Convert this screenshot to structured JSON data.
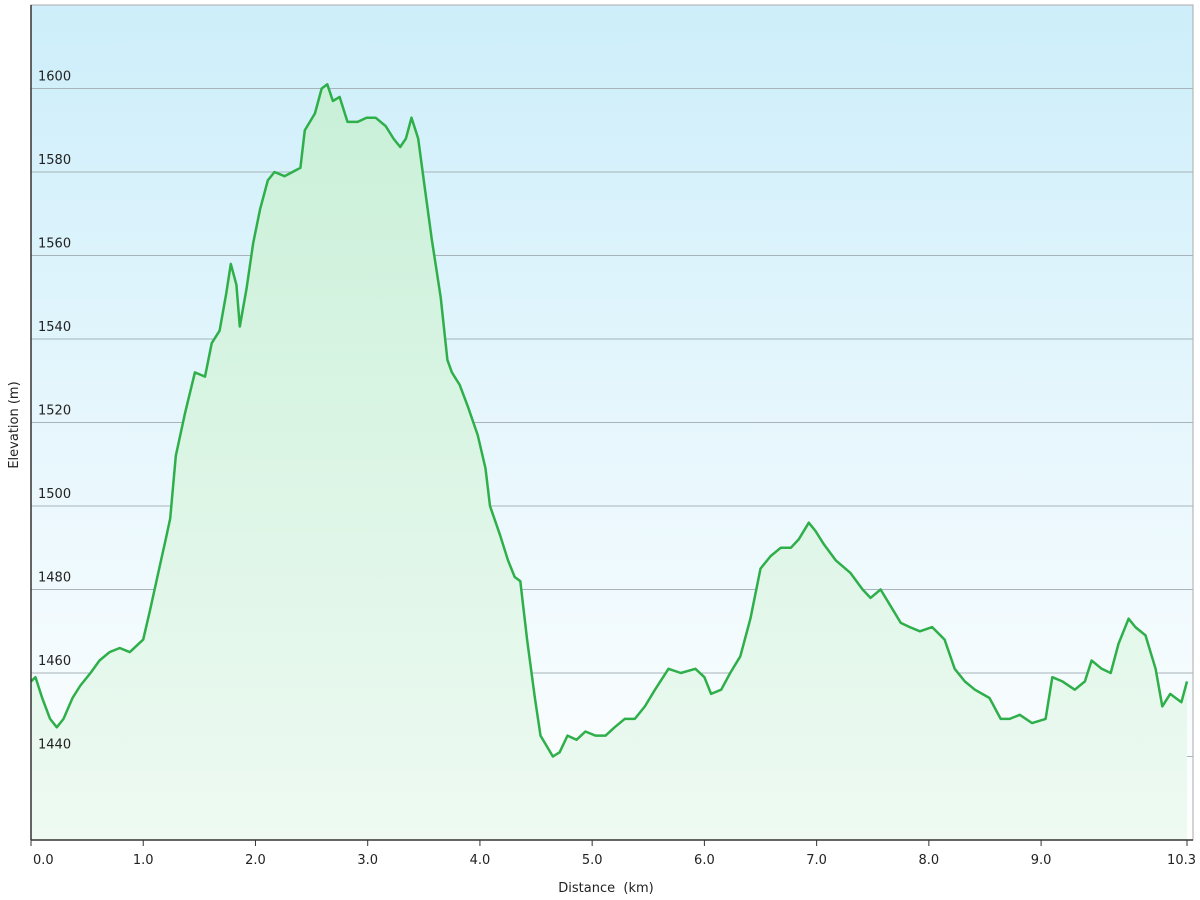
{
  "chart_data": {
    "type": "area",
    "xlabel": "Distance  (km)",
    "ylabel": "Elevation (m)",
    "color": "#2eaf4a",
    "fill_top": "#c9f0d8",
    "fill_bottom": "#eefaf2",
    "x": [
      0,
      0.04,
      0.1,
      0.17,
      0.23,
      0.29,
      0.37,
      0.44,
      0.53,
      0.61,
      0.7,
      0.79,
      0.88,
      1.0,
      1.06,
      1.15,
      1.2,
      1.24,
      1.29,
      1.37,
      1.46,
      1.55,
      1.61,
      1.68,
      1.74,
      1.78,
      1.83,
      1.86,
      1.92,
      1.98,
      2.04,
      2.11,
      2.17,
      2.26,
      2.33,
      2.4,
      2.44,
      2.53,
      2.59,
      2.64,
      2.69,
      2.75,
      2.82,
      2.91,
      2.99,
      3.07,
      3.16,
      3.23,
      3.29,
      3.34,
      3.39,
      3.45,
      3.51,
      3.57,
      3.65,
      3.71,
      3.75,
      3.82,
      3.89,
      3.98,
      4.05,
      4.09,
      4.18,
      4.25,
      4.31,
      4.36,
      4.42,
      4.49,
      4.54,
      4.65,
      4.71,
      4.78,
      4.86,
      4.94,
      5.03,
      5.12,
      5.2,
      5.29,
      5.38,
      5.47,
      5.56,
      5.68,
      5.79,
      5.92,
      6.0,
      6.06,
      6.15,
      6.23,
      6.32,
      6.41,
      6.5,
      6.59,
      6.68,
      6.77,
      6.84,
      6.93,
      6.99,
      7.06,
      7.17,
      7.3,
      7.41,
      7.48,
      7.57,
      7.66,
      7.75,
      7.83,
      7.92,
      8.03,
      8.14,
      8.23,
      8.32,
      8.41,
      8.54,
      8.64,
      8.72,
      8.81,
      8.92,
      9.04,
      9.1,
      9.19,
      9.3,
      9.39,
      9.45,
      9.54,
      9.62,
      9.69,
      9.78,
      9.84,
      9.93,
      10.02,
      10.08,
      10.15,
      10.25,
      10.3
    ],
    "values": [
      1458,
      1459,
      1454,
      1449,
      1447,
      1449,
      1454,
      1457,
      1460,
      1463,
      1465,
      1466,
      1465,
      1468,
      1475,
      1486,
      1492,
      1497,
      1512,
      1522,
      1532,
      1531,
      1539,
      1542,
      1551,
      1558,
      1553,
      1543,
      1552,
      1563,
      1571,
      1578,
      1580,
      1579,
      1580,
      1581,
      1590,
      1594,
      1600,
      1601,
      1597,
      1598,
      1592,
      1592,
      1593,
      1593,
      1591,
      1588,
      1586,
      1588,
      1593,
      1588,
      1576,
      1564,
      1550,
      1535,
      1532,
      1529,
      1524,
      1517,
      1509,
      1500,
      1493,
      1487,
      1483,
      1482,
      1468,
      1454,
      1445,
      1440,
      1441,
      1445,
      1444,
      1446,
      1445,
      1445,
      1447,
      1449,
      1449,
      1452,
      1456,
      1461,
      1460,
      1461,
      1459,
      1455,
      1456,
      1460,
      1464,
      1473,
      1485,
      1488,
      1490,
      1490,
      1492,
      1496,
      1494,
      1491,
      1487,
      1484,
      1480,
      1478,
      1480,
      1476,
      1472,
      1471,
      1470,
      1471,
      1468,
      1461,
      1458,
      1456,
      1454,
      1449,
      1449,
      1450,
      1448,
      1449,
      1459,
      1458,
      1456,
      1458,
      1463,
      1461,
      1460,
      1467,
      1473,
      1471,
      1469,
      1461,
      1452,
      1455,
      1453,
      1458
    ],
    "xlim": [
      0,
      10.3
    ],
    "xticks": [
      {
        "value": 0,
        "label": "0.0"
      },
      {
        "value": 1,
        "label": "1.0"
      },
      {
        "value": 2,
        "label": "2.0"
      },
      {
        "value": 3,
        "label": "3.0"
      },
      {
        "value": 4,
        "label": "4.0"
      },
      {
        "value": 5,
        "label": "5.0"
      },
      {
        "value": 6,
        "label": "6.0"
      },
      {
        "value": 7,
        "label": "7.0"
      },
      {
        "value": 8,
        "label": "8.0"
      },
      {
        "value": 9,
        "label": "9.0"
      },
      10.3
    ],
    "ylim": [
      1420,
      1620
    ],
    "yticks": [
      1440,
      1460,
      1480,
      1500,
      1520,
      1540,
      1560,
      1580,
      1600
    ],
    "grid": true
  }
}
